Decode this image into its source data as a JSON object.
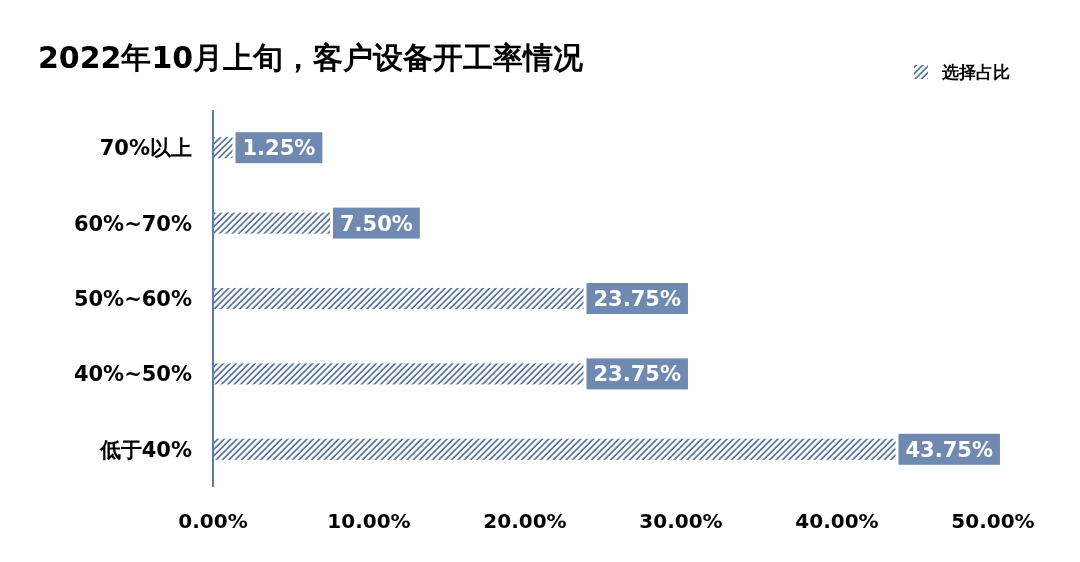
{
  "chart_data": {
    "type": "bar",
    "orientation": "horizontal",
    "title": "2022年10月上旬，客户设备开工率情况",
    "categories": [
      "70%以上",
      "60%~70%",
      "50%~60%",
      "40%~50%",
      "低于40%"
    ],
    "series": [
      {
        "name": "选择占比",
        "color": "#3f5f91",
        "values": [
          1.25,
          7.5,
          23.75,
          23.75,
          43.75
        ],
        "value_labels": [
          "1.25%",
          "7.50%",
          "23.75%",
          "23.75%",
          "43.75%"
        ]
      }
    ],
    "xlim": [
      0,
      50
    ],
    "xticks": [
      {
        "value": 0,
        "label": "0.00%"
      },
      {
        "value": 10,
        "label": "10.00%"
      },
      {
        "value": 20,
        "label": "20.00%"
      },
      {
        "value": 30,
        "label": "30.00%"
      },
      {
        "value": 40,
        "label": "40.00%"
      },
      {
        "value": 50,
        "label": "50.00%"
      }
    ],
    "legend": "top right"
  }
}
